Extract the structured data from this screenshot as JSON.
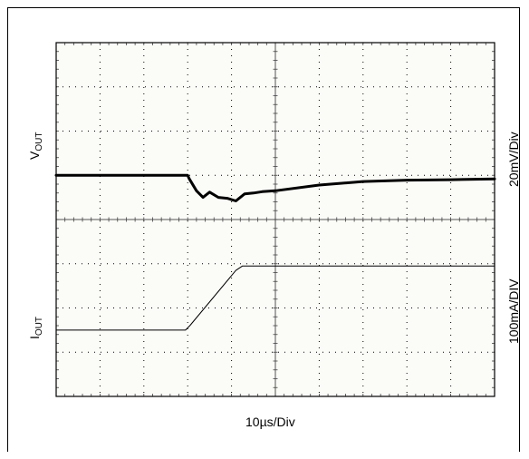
{
  "chart_data": {
    "type": "line",
    "title": "",
    "xlabel": "10µs/Div",
    "x_divisions": 10,
    "y_divisions": 8,
    "series": [
      {
        "name": "VOUT",
        "label_main": "V",
        "label_sub": "OUT",
        "scale": "20mV/Div",
        "x": [
          0,
          1,
          2,
          3,
          3.03,
          3.2,
          3.35,
          3.5,
          3.7,
          3.9,
          4.1,
          4.3,
          4.5,
          4.7,
          5,
          6,
          7,
          8,
          9,
          10
        ],
        "y": [
          5.0,
          5.0,
          5.0,
          5.0,
          4.93,
          4.65,
          4.5,
          4.62,
          4.5,
          4.48,
          4.42,
          4.58,
          4.6,
          4.63,
          4.65,
          4.78,
          4.86,
          4.89,
          4.9,
          4.92
        ],
        "stroke_width": 3
      },
      {
        "name": "IOUT",
        "label_main": "I",
        "label_sub": "OUT",
        "scale": "100mA/DIV",
        "x": [
          0,
          2.95,
          3.05,
          4.1,
          4.25,
          10
        ],
        "y": [
          1.5,
          1.5,
          1.6,
          2.85,
          2.95,
          2.95
        ],
        "stroke_width": 1
      }
    ]
  }
}
